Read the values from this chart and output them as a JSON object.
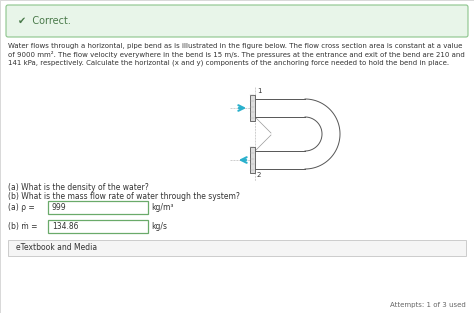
{
  "bg_color": "#f0f0f0",
  "page_bg": "#ffffff",
  "correct_box_bg": "#e8f5e9",
  "correct_box_border": "#8bc48b",
  "correct_text": "✔  Correct.",
  "correct_text_color": "#4a7a4a",
  "body_text_line1": "Water flows through a horizontal, pipe bend as is illustrated in the figure below. The flow cross section area is constant at a value",
  "body_text_line2": "of 9000 mm². The flow velocity everywhere in the bend is 15 m/s. The pressures at the entrance and exit of the bend are 210 and",
  "body_text_line3": "141 kPa, respectively. Calculate the horizontal (x and y) components of the anchoring force needed to hold the bend in place.",
  "qa_line1": "(a) What is the density of the water?",
  "qa_line2": "(b) What is the mass flow rate of water through the system?",
  "label_a": "(a) ρ =",
  "value_a": "999",
  "unit_a": "kg/m³",
  "label_b": "(b) ṁ =",
  "value_b": "134.86",
  "unit_b": "kg/s",
  "etextbook": "eTextbook and Media",
  "attempts": "Attempts: 1 of 3 used",
  "text_color": "#333333",
  "gray_text": "#666666",
  "input_bg": "#ffffff",
  "input_border": "#6aaa6a",
  "etextbook_bg": "#f5f5f5",
  "etextbook_border": "#cccccc",
  "arrow_color": "#2ab0cc",
  "pipe_color": "#999999",
  "pipe_dark": "#555555"
}
